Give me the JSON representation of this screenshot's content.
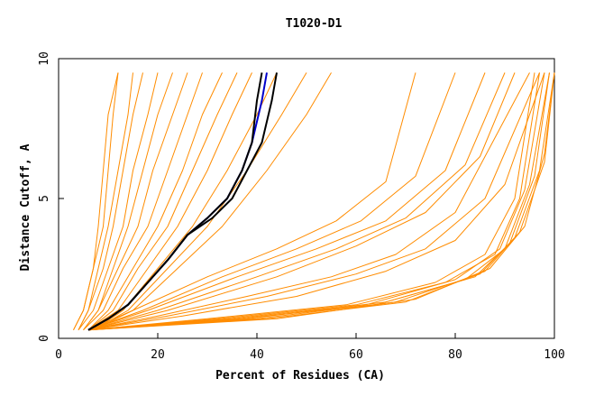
{
  "chart_data": {
    "type": "line",
    "title": "T1020-D1",
    "xlabel": "Percent of Residues (CA)",
    "ylabel": "Distance Cutoff, A",
    "xlim": [
      0,
      100
    ],
    "ylim": [
      0,
      10
    ],
    "xticks": [
      0,
      20,
      40,
      60,
      80,
      100
    ],
    "yticks": [
      0,
      5,
      10
    ],
    "x_tick_labels": [
      "0",
      "20",
      "40",
      "60",
      "80",
      "100"
    ],
    "y_tick_labels": [
      "0",
      "5",
      "10"
    ],
    "grid": false,
    "legend": "none",
    "colors": {
      "orange": "#ff8c00",
      "blue": "#0000cc",
      "black": "#000000",
      "axes": "#000000"
    },
    "series": [
      {
        "color": "orange",
        "x": [
          3,
          5,
          7,
          8,
          9,
          10,
          12
        ],
        "y": [
          0.3,
          1,
          2.5,
          4,
          6,
          8,
          9.5
        ]
      },
      {
        "color": "orange",
        "x": [
          3,
          5,
          7,
          9,
          10,
          11,
          12
        ],
        "y": [
          0.3,
          1,
          2.5,
          4,
          6,
          8,
          9.5
        ]
      },
      {
        "color": "orange",
        "x": [
          4,
          6,
          8,
          10,
          12,
          14,
          15
        ],
        "y": [
          0.3,
          1,
          2.5,
          4,
          6,
          8,
          9.5
        ]
      },
      {
        "color": "orange",
        "x": [
          4,
          6,
          9,
          11,
          13,
          15,
          17
        ],
        "y": [
          0.3,
          1,
          2.5,
          4,
          6,
          8,
          9.5
        ]
      },
      {
        "color": "orange",
        "x": [
          4,
          7,
          10,
          13,
          15,
          18,
          20
        ],
        "y": [
          0.3,
          1,
          2.5,
          4,
          6,
          8,
          9.5
        ]
      },
      {
        "color": "orange",
        "x": [
          5,
          8,
          11,
          14,
          17,
          20,
          23
        ],
        "y": [
          0.3,
          1,
          2.5,
          4,
          6,
          8,
          9.5
        ]
      },
      {
        "color": "orange",
        "x": [
          5,
          8,
          12,
          16,
          19,
          23,
          26
        ],
        "y": [
          0.3,
          1,
          2.5,
          4,
          6,
          8,
          9.5
        ]
      },
      {
        "color": "orange",
        "x": [
          5,
          9,
          13,
          18,
          22,
          26,
          29
        ],
        "y": [
          0.3,
          1,
          2.5,
          4,
          6,
          8,
          9.5
        ]
      },
      {
        "color": "orange",
        "x": [
          6,
          10,
          15,
          20,
          25,
          29,
          33
        ],
        "y": [
          0.3,
          1,
          2.5,
          4,
          6,
          8,
          9.5
        ]
      },
      {
        "color": "orange",
        "x": [
          6,
          11,
          16,
          22,
          27,
          32,
          36
        ],
        "y": [
          0.3,
          1,
          2.5,
          4,
          6,
          8,
          9.5
        ]
      },
      {
        "color": "orange",
        "x": [
          6,
          12,
          18,
          24,
          30,
          35,
          39
        ],
        "y": [
          0.3,
          1,
          2.5,
          4,
          6,
          8,
          9.5
        ]
      },
      {
        "color": "orange",
        "x": [
          7,
          13,
          20,
          27,
          34,
          40,
          44
        ],
        "y": [
          0.3,
          1,
          2.5,
          4,
          6,
          8,
          9.5
        ]
      },
      {
        "color": "orange",
        "x": [
          7,
          14,
          22,
          30,
          38,
          45,
          50
        ],
        "y": [
          0.3,
          1,
          2.5,
          4,
          6,
          8,
          9.5
        ]
      },
      {
        "color": "orange",
        "x": [
          7,
          15,
          24,
          33,
          42,
          50,
          55
        ],
        "y": [
          0.3,
          1,
          2.5,
          4,
          6,
          8,
          9.5
        ]
      },
      {
        "color": "orange",
        "x": [
          6,
          15,
          30,
          44,
          56,
          66,
          72
        ],
        "y": [
          0.3,
          1,
          2.2,
          3.2,
          4.2,
          5.6,
          9.5
        ]
      },
      {
        "color": "orange",
        "x": [
          6,
          17,
          33,
          48,
          61,
          72,
          80
        ],
        "y": [
          0.3,
          1,
          2.2,
          3.2,
          4.2,
          5.8,
          9.5
        ]
      },
      {
        "color": "orange",
        "x": [
          6,
          18,
          36,
          52,
          66,
          78,
          86
        ],
        "y": [
          0.3,
          1,
          2.2,
          3.2,
          4.2,
          6,
          9.5
        ]
      },
      {
        "color": "orange",
        "x": [
          6,
          20,
          40,
          56,
          70,
          82,
          90
        ],
        "y": [
          0.3,
          1,
          2.2,
          3.2,
          4.3,
          6.2,
          9.5
        ]
      },
      {
        "color": "orange",
        "x": [
          6,
          22,
          44,
          60,
          74,
          85,
          92
        ],
        "y": [
          0.3,
          1,
          2.2,
          3.3,
          4.5,
          6.5,
          9.5
        ]
      },
      {
        "color": "orange",
        "x": [
          6,
          20,
          38,
          55,
          68,
          80,
          95
        ],
        "y": [
          0.3,
          0.8,
          1.5,
          2.2,
          3,
          4.5,
          9.5
        ]
      },
      {
        "color": "orange",
        "x": [
          6,
          22,
          42,
          60,
          74,
          86,
          97
        ],
        "y": [
          0.3,
          0.8,
          1.5,
          2.3,
          3.2,
          5,
          9.5
        ]
      },
      {
        "color": "orange",
        "x": [
          6,
          25,
          48,
          66,
          80,
          90,
          98
        ],
        "y": [
          0.3,
          0.8,
          1.5,
          2.4,
          3.5,
          5.5,
          9.5
        ]
      },
      {
        "color": "orange",
        "x": [
          6,
          30,
          58,
          76,
          86,
          92,
          96
        ],
        "y": [
          0.3,
          0.7,
          1.2,
          2,
          3,
          5,
          9.5
        ]
      },
      {
        "color": "orange",
        "x": [
          6,
          32,
          60,
          78,
          88,
          93,
          97
        ],
        "y": [
          0.3,
          0.7,
          1.2,
          2,
          3,
          5,
          9.5
        ]
      },
      {
        "color": "orange",
        "x": [
          6,
          34,
          62,
          80,
          89,
          94,
          98
        ],
        "y": [
          0.3,
          0.7,
          1.2,
          2.1,
          3.2,
          5.3,
          9.5
        ]
      },
      {
        "color": "orange",
        "x": [
          6,
          36,
          64,
          82,
          90,
          95,
          99
        ],
        "y": [
          0.3,
          0.7,
          1.2,
          2.1,
          3.2,
          5.5,
          9.5
        ]
      },
      {
        "color": "orange",
        "x": [
          6,
          38,
          66,
          84,
          91,
          96,
          99
        ],
        "y": [
          0.3,
          0.7,
          1.3,
          2.2,
          3.4,
          5.8,
          9.5
        ]
      },
      {
        "color": "orange",
        "x": [
          6,
          40,
          68,
          85,
          92,
          97,
          100
        ],
        "y": [
          0.3,
          0.7,
          1.3,
          2.3,
          3.6,
          6,
          9.5
        ]
      },
      {
        "color": "orange",
        "x": [
          6,
          42,
          70,
          86,
          93,
          98,
          100
        ],
        "y": [
          0.3,
          0.7,
          1.3,
          2.4,
          3.8,
          6.3,
          9.5
        ]
      },
      {
        "color": "orange",
        "x": [
          6,
          44,
          72,
          87,
          94,
          98,
          100
        ],
        "y": [
          0.3,
          0.7,
          1.4,
          2.5,
          4,
          6.6,
          9.5
        ]
      },
      {
        "color": "blue",
        "x": [
          6,
          10,
          14,
          18,
          22,
          26,
          30,
          34,
          37,
          39,
          41,
          42
        ],
        "y": [
          0.3,
          0.7,
          1.2,
          2,
          2.8,
          3.7,
          4.3,
          5,
          6,
          7,
          8.5,
          9.5
        ]
      },
      {
        "color": "black",
        "x": [
          6,
          10,
          14,
          18,
          22,
          26,
          30,
          34,
          37,
          39,
          40,
          41
        ],
        "y": [
          0.3,
          0.7,
          1.2,
          2,
          2.8,
          3.7,
          4.3,
          5,
          6,
          7,
          8.5,
          9.5
        ]
      },
      {
        "color": "black",
        "x": [
          6,
          10,
          14,
          18,
          22,
          26,
          31,
          35,
          38,
          41,
          43,
          44
        ],
        "y": [
          0.3,
          0.7,
          1.2,
          2,
          2.8,
          3.7,
          4.3,
          5,
          6,
          7,
          8.5,
          9.5
        ]
      }
    ]
  }
}
